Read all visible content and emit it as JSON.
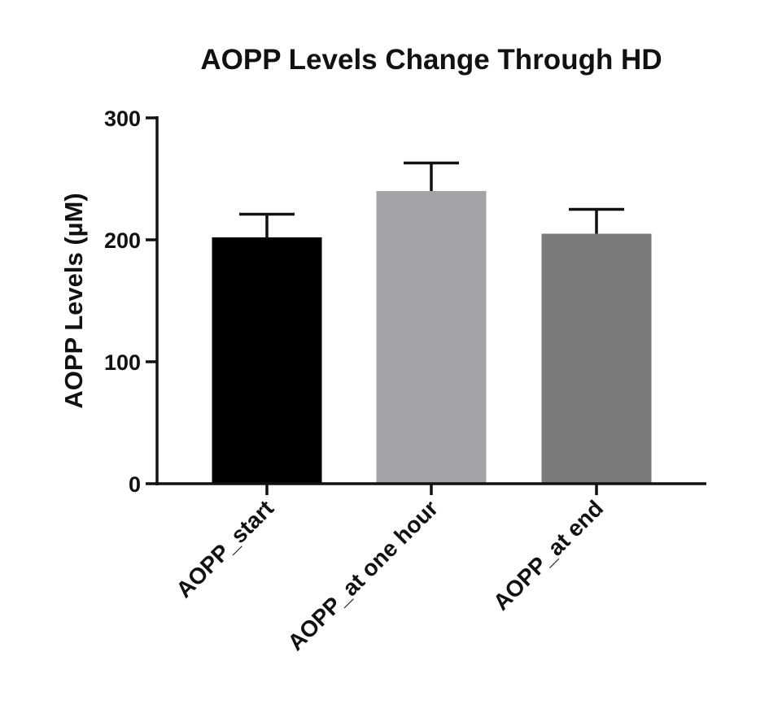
{
  "chart_data": {
    "type": "bar",
    "title": "AOPP Levels Change Through HD",
    "xlabel": "",
    "ylabel": "AOPP Levels (µM)",
    "ylim": [
      0,
      300
    ],
    "yticks": [
      0,
      100,
      200,
      300
    ],
    "grid": false,
    "categories": [
      "AOPP_start",
      "AOPP_at one hour",
      "AOPP_at end"
    ],
    "values": [
      202,
      240,
      205
    ],
    "error_upper": [
      221,
      263,
      225
    ],
    "colors": [
      "#000000",
      "#a3a3a8",
      "#7b7b7b"
    ]
  }
}
